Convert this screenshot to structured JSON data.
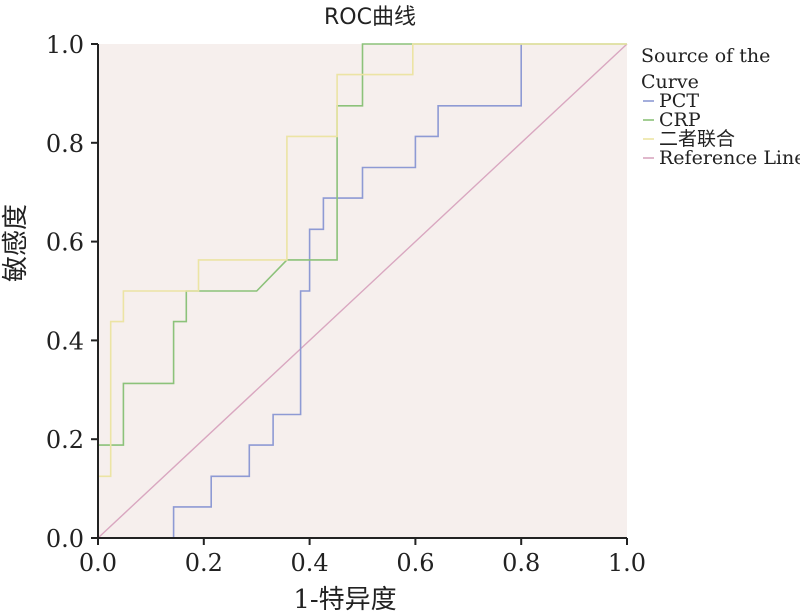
{
  "chart_data": {
    "type": "line",
    "title": "ROC曲线",
    "xlabel": "1-特异度",
    "ylabel": "敏感度",
    "xlim": [
      0,
      1
    ],
    "ylim": [
      0,
      1
    ],
    "xticks": [
      "0.0",
      "0.2",
      "0.4",
      "0.6",
      "0.8",
      "1.0"
    ],
    "yticks": [
      "0.0",
      "0.2",
      "0.4",
      "0.6",
      "0.8",
      "1.0"
    ],
    "grid": false,
    "background_color": "#f6efed",
    "legend_position": "right-top",
    "legend_title": "Source of the Curve",
    "series": [
      {
        "name": "PCT",
        "color": "#8e9ad4",
        "x": [
          0.143,
          0.143,
          0.214,
          0.214,
          0.286,
          0.286,
          0.331,
          0.331,
          0.383,
          0.383,
          0.4,
          0.4,
          0.426,
          0.426,
          0.452,
          0.452,
          0.5,
          0.5,
          0.6,
          0.6,
          0.643,
          0.643,
          0.8,
          0.8
        ],
        "y": [
          0.0,
          0.063,
          0.063,
          0.125,
          0.125,
          0.188,
          0.188,
          0.25,
          0.25,
          0.5,
          0.5,
          0.625,
          0.625,
          0.688,
          0.688,
          0.688,
          0.688,
          0.75,
          0.75,
          0.813,
          0.813,
          0.875,
          0.875,
          1.0
        ]
      },
      {
        "name": "CRP",
        "color": "#8cc27a",
        "x": [
          0.0,
          0.0,
          0.048,
          0.048,
          0.071,
          0.071,
          0.143,
          0.143,
          0.167,
          0.167,
          0.3,
          0.3,
          0.357,
          0.357,
          0.452,
          0.452,
          0.5,
          0.5,
          1.0
        ],
        "y": [
          0.0,
          0.188,
          0.188,
          0.313,
          0.313,
          0.313,
          0.313,
          0.438,
          0.438,
          0.5,
          0.5,
          0.5,
          0.563,
          0.563,
          0.563,
          0.875,
          0.875,
          1.0,
          1.0
        ]
      },
      {
        "name": "二者联合",
        "color": "#ece4a4",
        "x": [
          0.0,
          0.0,
          0.024,
          0.024,
          0.048,
          0.048,
          0.095,
          0.095,
          0.19,
          0.19,
          0.357,
          0.357,
          0.452,
          0.452,
          0.5,
          0.5,
          0.595,
          0.595,
          1.0
        ],
        "y": [
          0.0,
          0.125,
          0.125,
          0.438,
          0.438,
          0.5,
          0.5,
          0.5,
          0.5,
          0.563,
          0.563,
          0.813,
          0.813,
          0.938,
          0.938,
          0.938,
          0.938,
          1.0,
          1.0
        ]
      },
      {
        "name": "Reference Line",
        "color": "#d9a7c0",
        "x": [
          0,
          1
        ],
        "y": [
          0,
          1
        ]
      }
    ]
  }
}
